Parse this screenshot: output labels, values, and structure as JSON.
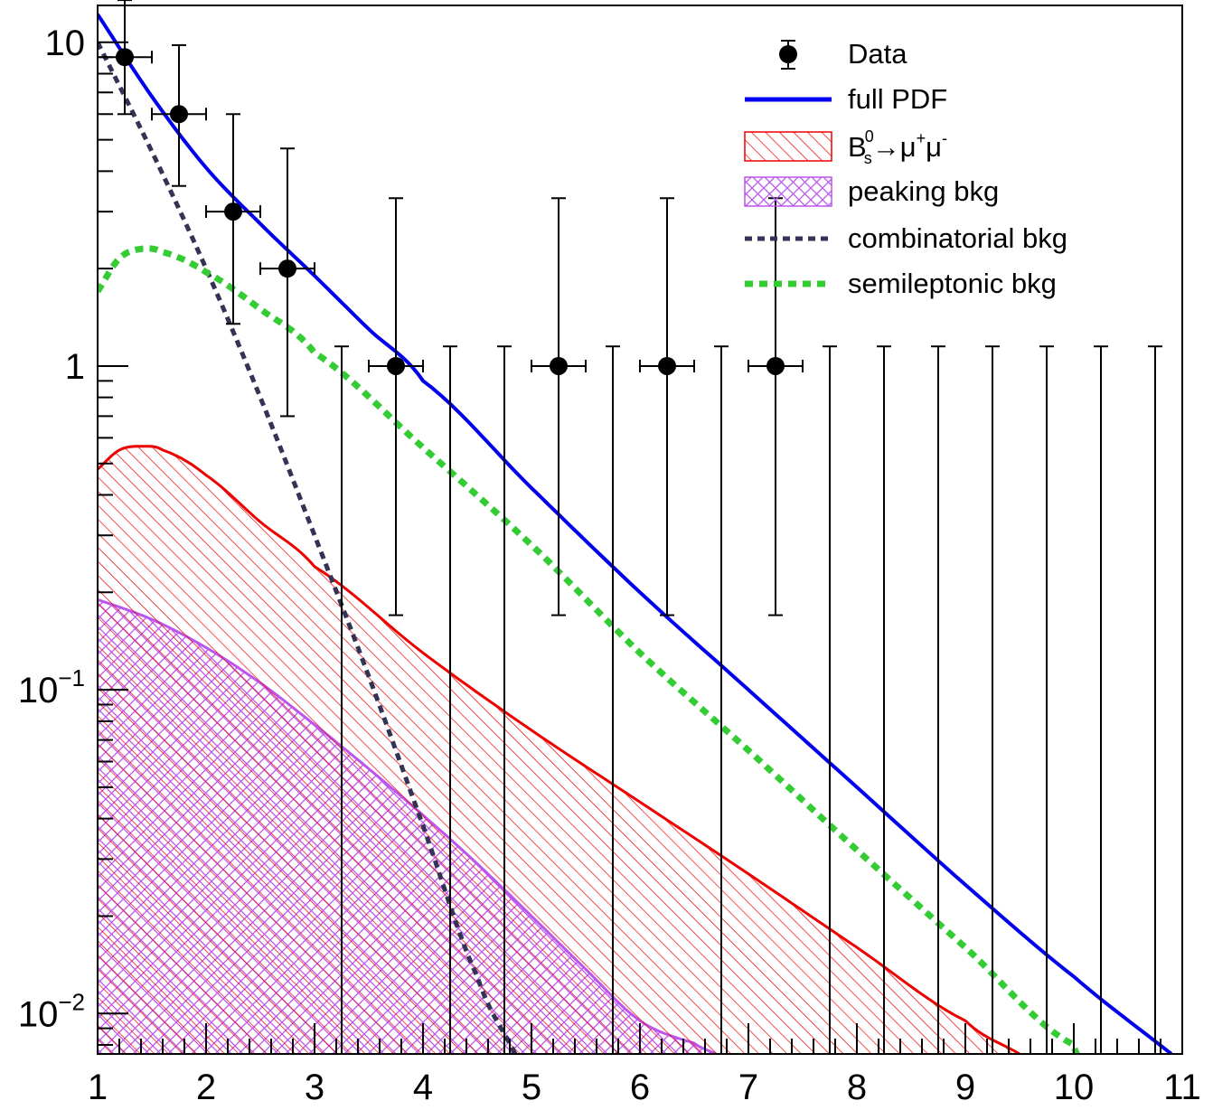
{
  "chart_data": {
    "type": "line",
    "title": "",
    "xlabel": "",
    "ylabel": "",
    "xlim": [
      1,
      11
    ],
    "ylim": [
      0.0075,
      13
    ],
    "yscale": "log",
    "grid": false,
    "legend_position": "top-right",
    "x_ticks": [
      "1",
      "2",
      "3",
      "4",
      "5",
      "6",
      "7",
      "8",
      "9",
      "10",
      "11"
    ],
    "y_ticks": [
      {
        "value": 0.01,
        "base": "10",
        "exp": "−2"
      },
      {
        "value": 0.1,
        "base": "10",
        "exp": "−1"
      },
      {
        "value": 1,
        "base": "1",
        "exp": ""
      },
      {
        "value": 10,
        "base": "10",
        "exp": ""
      }
    ],
    "legend": {
      "data": "Data",
      "full_pdf": "full PDF",
      "signal_B": "B",
      "signal_sup": "0",
      "signal_sub": "s",
      "signal_arrow": "→μ",
      "signal_plus": "+",
      "signal_mu": "μ",
      "signal_minus": "-",
      "peaking": "peaking bkg",
      "combinatorial": "combinatorial bkg",
      "semileptonic": "semileptonic bkg"
    },
    "colors": {
      "data": "#000000",
      "full_pdf": "#0000ee",
      "signal": "#ee0000",
      "peaking": "#bb55ee",
      "combinatorial": "#333355",
      "semileptonic": "#33cc33"
    },
    "data_points": [
      {
        "x": 1.25,
        "y": 9,
        "xerr": 0.25,
        "ylo": 6.0,
        "yhi": 13.5
      },
      {
        "x": 1.75,
        "y": 6,
        "xerr": 0.25,
        "ylo": 3.6,
        "yhi": 9.8
      },
      {
        "x": 2.25,
        "y": 3,
        "xerr": 0.25,
        "ylo": 1.35,
        "yhi": 6.0
      },
      {
        "x": 2.75,
        "y": 2,
        "xerr": 0.25,
        "ylo": 0.7,
        "yhi": 4.7
      },
      {
        "x": 3.75,
        "y": 1,
        "xerr": 0.25,
        "ylo": 0.17,
        "yhi": 3.3
      },
      {
        "x": 5.25,
        "y": 1,
        "xerr": 0.25,
        "ylo": 0.17,
        "yhi": 3.3
      },
      {
        "x": 6.25,
        "y": 1,
        "xerr": 0.25,
        "ylo": 0.17,
        "yhi": 3.3
      },
      {
        "x": 7.25,
        "y": 1,
        "xerr": 0.25,
        "ylo": 0.17,
        "yhi": 3.3
      }
    ],
    "empty_bins_x": [
      3.25,
      4.25,
      4.75,
      5.75,
      6.75,
      7.75,
      8.25,
      8.75,
      9.25,
      9.75,
      10.25,
      10.75
    ],
    "empty_bin_yhi": 1.15,
    "series": [
      {
        "name": "full PDF",
        "x": [
          1.0,
          1.5,
          2.0,
          2.5,
          3.0,
          3.5,
          4.0,
          5.0,
          6.0,
          7.0,
          8.0,
          9.0,
          10.0,
          10.9
        ],
        "y": [
          12.2,
          6.8,
          4.1,
          2.75,
          1.9,
          1.3,
          0.9,
          0.42,
          0.2,
          0.1,
          0.05,
          0.025,
          0.013,
          0.0075
        ]
      },
      {
        "name": "B0s→μ+μ-",
        "x": [
          1.0,
          1.2,
          1.4,
          1.6,
          2.0,
          2.5,
          3.0,
          4.0,
          5.0,
          6.0,
          7.0,
          8.0,
          9.0,
          9.5
        ],
        "y": [
          0.48,
          0.55,
          0.565,
          0.55,
          0.46,
          0.33,
          0.24,
          0.13,
          0.075,
          0.045,
          0.027,
          0.016,
          0.0095,
          0.0075
        ]
      },
      {
        "name": "peaking bkg",
        "x": [
          1.0,
          1.5,
          2.0,
          2.5,
          3.0,
          3.5,
          4.0,
          4.5,
          5.0,
          5.5,
          6.0,
          6.5,
          6.7
        ],
        "y": [
          0.19,
          0.165,
          0.135,
          0.105,
          0.078,
          0.057,
          0.041,
          0.029,
          0.02,
          0.0137,
          0.0095,
          0.0081,
          0.0075
        ]
      },
      {
        "name": "combinatorial bkg",
        "x": [
          1.0,
          1.5,
          2.0,
          2.5,
          3.0,
          3.5,
          4.0,
          4.5,
          4.85
        ],
        "y": [
          10.0,
          4.6,
          2.0,
          0.8,
          0.3,
          0.11,
          0.038,
          0.013,
          0.0075
        ]
      },
      {
        "name": "semileptonic bkg",
        "x": [
          1.0,
          1.2,
          1.4,
          1.6,
          2.0,
          2.5,
          3.0,
          4.0,
          5.0,
          6.0,
          7.0,
          8.0,
          9.0,
          10.0,
          10.1
        ],
        "y": [
          1.7,
          2.15,
          2.3,
          2.25,
          1.95,
          1.5,
          1.1,
          0.56,
          0.28,
          0.13,
          0.065,
          0.032,
          0.016,
          0.008,
          0.0075
        ]
      }
    ]
  }
}
